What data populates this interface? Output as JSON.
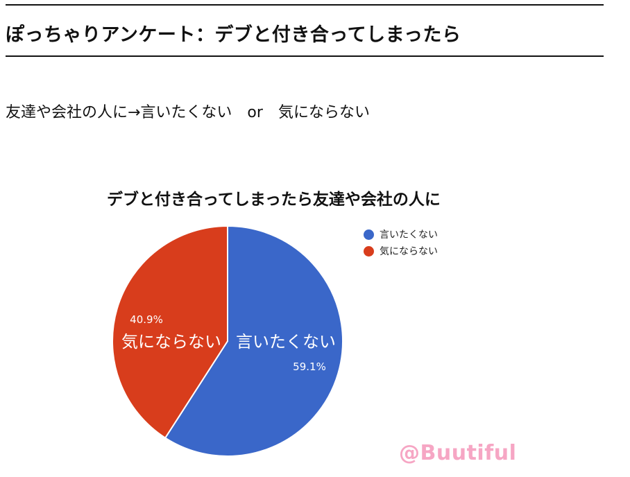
{
  "page": {
    "heading": "ぽっちゃりアンケート：デブと付き合ってしまったら",
    "subtitle": "友達や会社の人に→言いたくない　or　気にならない",
    "watermark": "@Buutiful"
  },
  "chart_data": {
    "type": "pie",
    "title": "デブと付き合ってしまったら友達や会社の人に",
    "categories": [
      "言いたくない",
      "気にならない"
    ],
    "values": [
      59.1,
      40.9
    ],
    "value_labels": [
      "59.1%",
      "40.9%"
    ],
    "colors": [
      "#3a67c9",
      "#d83d1c"
    ],
    "legend_position": "right"
  }
}
